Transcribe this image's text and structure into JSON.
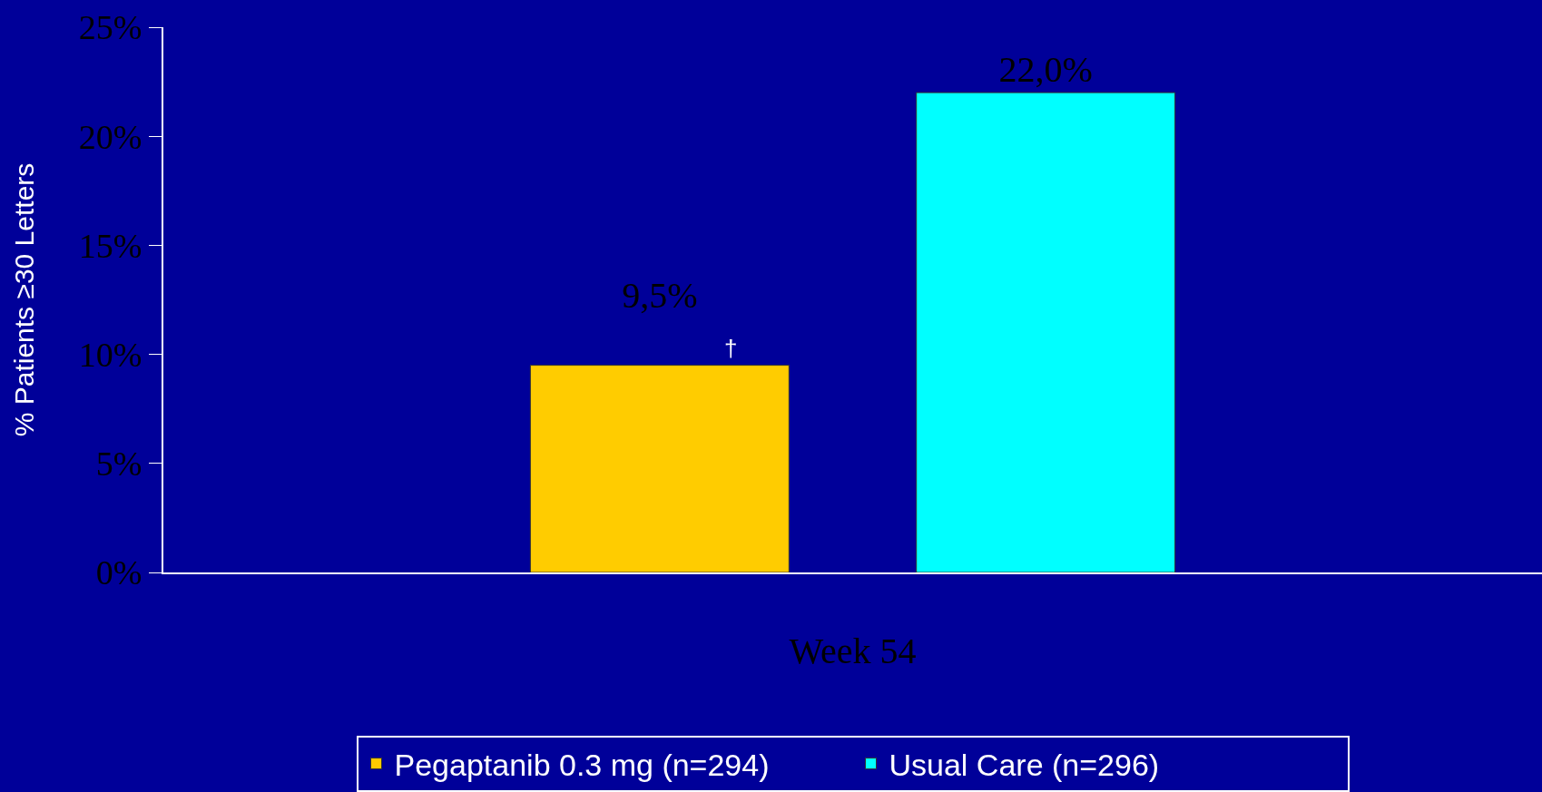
{
  "chart_data": {
    "type": "bar",
    "ylabel": "% Patients ≥30 Letters",
    "categories": [
      "Week 54"
    ],
    "series": [
      {
        "name": "Pegaptanib 0.3 mg (n=294)",
        "color": "#ffcc00",
        "values": [
          9.5
        ],
        "value_labels": [
          "9,5%"
        ]
      },
      {
        "name": "Usual Care (n=296)",
        "color": "#00ffff",
        "values": [
          22.0
        ],
        "value_labels": [
          "22,0%"
        ]
      }
    ],
    "ylim": [
      0,
      25
    ],
    "yticks": [
      {
        "value": 0,
        "label": "0%"
      },
      {
        "value": 5,
        "label": "5%"
      },
      {
        "value": 10,
        "label": "10%"
      },
      {
        "value": 15,
        "label": "15%"
      },
      {
        "value": 20,
        "label": "20%"
      },
      {
        "value": 25,
        "label": "25%"
      }
    ],
    "annotations": [
      "†"
    ],
    "grid": false,
    "legend": "bottom"
  }
}
